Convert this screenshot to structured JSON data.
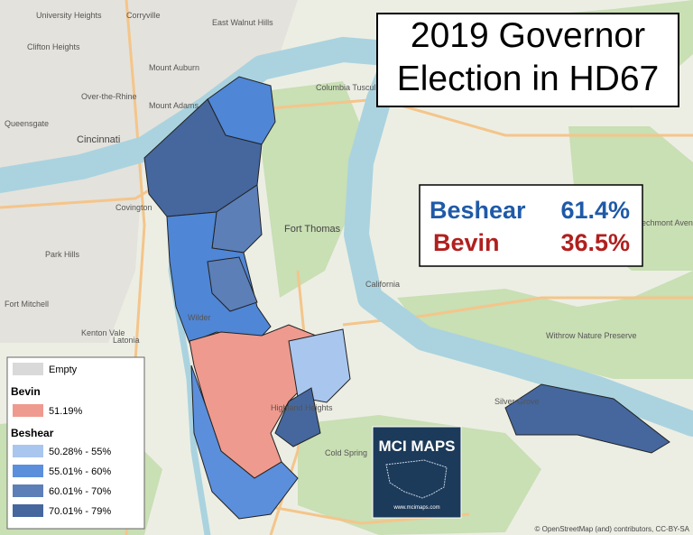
{
  "title": {
    "lines": [
      "2019 Governor",
      "Election in HD67"
    ]
  },
  "results": [
    {
      "name": "Beshear",
      "percent": "61.4%"
    },
    {
      "name": "Bevin",
      "percent": "36.5%"
    }
  ],
  "legend": {
    "empty": "Empty",
    "groups": [
      {
        "name": "Bevin",
        "items": [
          "51.19%"
        ]
      },
      {
        "name": "Beshear",
        "items": [
          "50.28% - 55%",
          "55.01% - 60%",
          "60.01% - 70%",
          "70.01% - 79%"
        ]
      }
    ]
  },
  "logo": {
    "name": "MCI MAPS",
    "url": "www.mcimaps.com"
  },
  "places": [
    "University Heights",
    "Corryville",
    "East Walnut Hills",
    "Clifton Heights",
    "Mount Auburn",
    "Over-the-Rhine",
    "Mount Adams",
    "Queensgate",
    "Cincinnati",
    "Columbia Tusculum",
    "Covington",
    "Park Hills",
    "Fort Mitchell",
    "Kenton Vale",
    "Latonia",
    "Fort Thomas",
    "California",
    "Wilder",
    "Highland Heights",
    "Cold Spring",
    "Silver Grove",
    "Withrow Nature Preserve",
    "Beechmont Avenue Business District"
  ],
  "attribution": "© OpenStreetMap (and) contributors, CC-BY-SA"
}
